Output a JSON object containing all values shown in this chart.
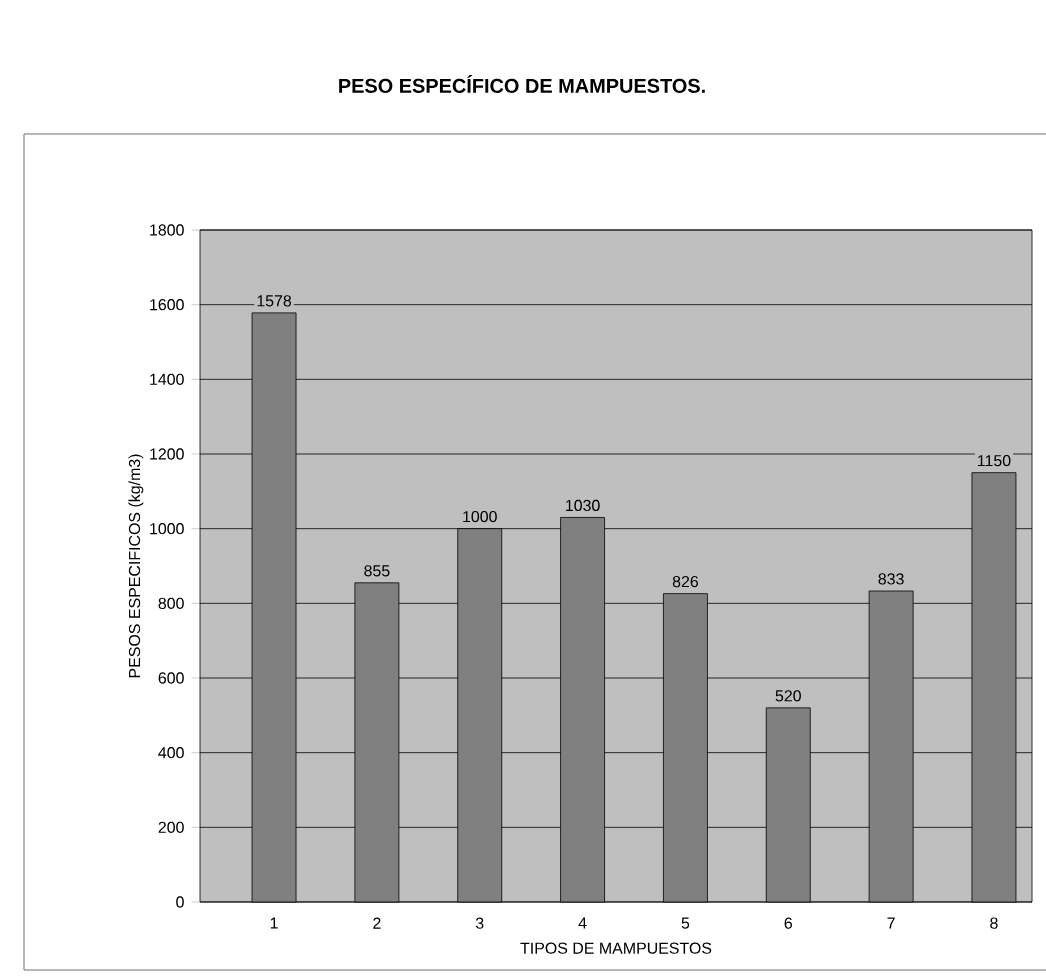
{
  "chart_data": {
    "type": "bar",
    "title": "PESO ESPECÍFICO DE MAMPUESTOS.",
    "xlabel": "TIPOS DE MAMPUESTOS",
    "ylabel": "PESOS ESPECIFICOS (kg/m3)",
    "categories": [
      "1",
      "2",
      "3",
      "4",
      "5",
      "6",
      "7",
      "8"
    ],
    "values": [
      1578,
      855,
      1000,
      1030,
      826,
      520,
      833,
      1150
    ],
    "color": "#808080",
    "ylim": [
      0,
      1800
    ],
    "yticks": [
      0,
      200,
      400,
      600,
      800,
      1000,
      1200,
      1400,
      1600,
      1800
    ],
    "grid": "y",
    "data_labels": true
  }
}
